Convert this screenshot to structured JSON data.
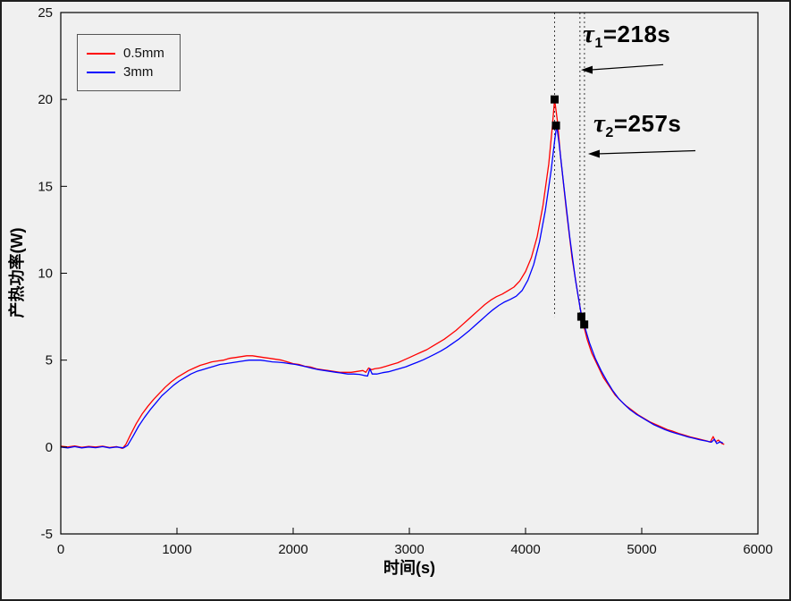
{
  "figure": {
    "background": "#f0f0f0",
    "border_color": "#1f1f1f"
  },
  "chart_data": {
    "type": "line",
    "title": "",
    "xlabel": "时间(s)",
    "ylabel": "产热功率(W)",
    "xlim": [
      0,
      6000
    ],
    "ylim": [
      -5,
      25
    ],
    "xticks": [
      0,
      1000,
      2000,
      3000,
      4000,
      5000,
      6000
    ],
    "yticks": [
      -5,
      0,
      5,
      10,
      15,
      20,
      25
    ],
    "grid": false,
    "legend_position": "top-left",
    "colors": {
      "plot_bg": "#f0f0f0",
      "axis": "#000000",
      "vline": "#3a3a3a",
      "marker": "#000000",
      "arrow": "#000000"
    },
    "series": [
      {
        "name": "0.5mm",
        "color": "#ff0000",
        "points": [
          [
            0,
            0.05
          ],
          [
            60,
            0
          ],
          [
            120,
            0.06
          ],
          [
            180,
            -0.02
          ],
          [
            240,
            0.04
          ],
          [
            300,
            0
          ],
          [
            360,
            0.05
          ],
          [
            420,
            -0.03
          ],
          [
            480,
            0.02
          ],
          [
            530,
            -0.08
          ],
          [
            560,
            0.15
          ],
          [
            600,
            0.7
          ],
          [
            650,
            1.35
          ],
          [
            700,
            1.9
          ],
          [
            750,
            2.35
          ],
          [
            800,
            2.75
          ],
          [
            850,
            3.1
          ],
          [
            900,
            3.45
          ],
          [
            950,
            3.75
          ],
          [
            1000,
            4.0
          ],
          [
            1050,
            4.2
          ],
          [
            1100,
            4.4
          ],
          [
            1150,
            4.55
          ],
          [
            1200,
            4.7
          ],
          [
            1250,
            4.8
          ],
          [
            1300,
            4.9
          ],
          [
            1350,
            4.95
          ],
          [
            1400,
            5.0
          ],
          [
            1450,
            5.1
          ],
          [
            1500,
            5.15
          ],
          [
            1550,
            5.2
          ],
          [
            1600,
            5.25
          ],
          [
            1650,
            5.25
          ],
          [
            1700,
            5.2
          ],
          [
            1750,
            5.15
          ],
          [
            1800,
            5.1
          ],
          [
            1850,
            5.05
          ],
          [
            1900,
            5.0
          ],
          [
            1950,
            4.9
          ],
          [
            2000,
            4.8
          ],
          [
            2050,
            4.75
          ],
          [
            2100,
            4.65
          ],
          [
            2150,
            4.6
          ],
          [
            2200,
            4.5
          ],
          [
            2250,
            4.45
          ],
          [
            2300,
            4.4
          ],
          [
            2350,
            4.35
          ],
          [
            2400,
            4.3
          ],
          [
            2450,
            4.3
          ],
          [
            2500,
            4.3
          ],
          [
            2550,
            4.35
          ],
          [
            2600,
            4.4
          ],
          [
            2625,
            4.3
          ],
          [
            2650,
            4.55
          ],
          [
            2675,
            4.45
          ],
          [
            2700,
            4.5
          ],
          [
            2750,
            4.55
          ],
          [
            2800,
            4.65
          ],
          [
            2850,
            4.75
          ],
          [
            2900,
            4.85
          ],
          [
            2950,
            5.0
          ],
          [
            3000,
            5.15
          ],
          [
            3050,
            5.3
          ],
          [
            3100,
            5.45
          ],
          [
            3150,
            5.6
          ],
          [
            3200,
            5.8
          ],
          [
            3250,
            6.0
          ],
          [
            3300,
            6.2
          ],
          [
            3350,
            6.45
          ],
          [
            3400,
            6.7
          ],
          [
            3450,
            7.0
          ],
          [
            3500,
            7.3
          ],
          [
            3550,
            7.6
          ],
          [
            3600,
            7.9
          ],
          [
            3650,
            8.2
          ],
          [
            3700,
            8.45
          ],
          [
            3750,
            8.65
          ],
          [
            3800,
            8.8
          ],
          [
            3850,
            9.0
          ],
          [
            3900,
            9.2
          ],
          [
            3950,
            9.55
          ],
          [
            4000,
            10.1
          ],
          [
            4050,
            10.9
          ],
          [
            4100,
            12.1
          ],
          [
            4150,
            13.9
          ],
          [
            4200,
            16.3
          ],
          [
            4230,
            18.4
          ],
          [
            4250,
            20.0
          ],
          [
            4275,
            18.7
          ],
          [
            4300,
            16.8
          ],
          [
            4350,
            13.7
          ],
          [
            4400,
            10.9
          ],
          [
            4450,
            8.8
          ],
          [
            4470,
            8.0
          ],
          [
            4500,
            7.0
          ],
          [
            4530,
            6.2
          ],
          [
            4570,
            5.4
          ],
          [
            4620,
            4.7
          ],
          [
            4670,
            4.0
          ],
          [
            4720,
            3.5
          ],
          [
            4770,
            3.0
          ],
          [
            4820,
            2.65
          ],
          [
            4870,
            2.35
          ],
          [
            4920,
            2.1
          ],
          [
            4970,
            1.85
          ],
          [
            5020,
            1.65
          ],
          [
            5070,
            1.45
          ],
          [
            5120,
            1.3
          ],
          [
            5170,
            1.15
          ],
          [
            5220,
            1.0
          ],
          [
            5270,
            0.9
          ],
          [
            5320,
            0.78
          ],
          [
            5370,
            0.68
          ],
          [
            5420,
            0.58
          ],
          [
            5470,
            0.5
          ],
          [
            5520,
            0.42
          ],
          [
            5560,
            0.35
          ],
          [
            5590,
            0.28
          ],
          [
            5615,
            0.6
          ],
          [
            5635,
            0.3
          ],
          [
            5660,
            0.4
          ],
          [
            5690,
            0.2
          ],
          [
            5710,
            0.15
          ]
        ]
      },
      {
        "name": "3mm",
        "color": "#0000ff",
        "points": [
          [
            0,
            0
          ],
          [
            60,
            -0.05
          ],
          [
            120,
            0.02
          ],
          [
            180,
            -0.05
          ],
          [
            240,
            0
          ],
          [
            300,
            -0.04
          ],
          [
            360,
            0.02
          ],
          [
            420,
            -0.05
          ],
          [
            480,
            0
          ],
          [
            540,
            -0.05
          ],
          [
            575,
            0.1
          ],
          [
            620,
            0.6
          ],
          [
            670,
            1.2
          ],
          [
            720,
            1.7
          ],
          [
            770,
            2.15
          ],
          [
            820,
            2.55
          ],
          [
            870,
            2.95
          ],
          [
            920,
            3.25
          ],
          [
            970,
            3.55
          ],
          [
            1020,
            3.8
          ],
          [
            1070,
            4.0
          ],
          [
            1120,
            4.2
          ],
          [
            1170,
            4.35
          ],
          [
            1220,
            4.45
          ],
          [
            1270,
            4.55
          ],
          [
            1320,
            4.65
          ],
          [
            1370,
            4.75
          ],
          [
            1420,
            4.8
          ],
          [
            1470,
            4.85
          ],
          [
            1520,
            4.9
          ],
          [
            1570,
            4.95
          ],
          [
            1620,
            5.0
          ],
          [
            1670,
            5.0
          ],
          [
            1720,
            5.0
          ],
          [
            1770,
            4.95
          ],
          [
            1820,
            4.9
          ],
          [
            1870,
            4.88
          ],
          [
            1920,
            4.85
          ],
          [
            1970,
            4.8
          ],
          [
            2020,
            4.75
          ],
          [
            2070,
            4.68
          ],
          [
            2120,
            4.6
          ],
          [
            2170,
            4.52
          ],
          [
            2220,
            4.45
          ],
          [
            2270,
            4.4
          ],
          [
            2320,
            4.35
          ],
          [
            2370,
            4.3
          ],
          [
            2420,
            4.25
          ],
          [
            2470,
            4.2
          ],
          [
            2520,
            4.2
          ],
          [
            2570,
            4.18
          ],
          [
            2610,
            4.12
          ],
          [
            2640,
            4.08
          ],
          [
            2660,
            4.5
          ],
          [
            2680,
            4.2
          ],
          [
            2720,
            4.2
          ],
          [
            2770,
            4.28
          ],
          [
            2820,
            4.33
          ],
          [
            2870,
            4.42
          ],
          [
            2920,
            4.52
          ],
          [
            2970,
            4.62
          ],
          [
            3020,
            4.75
          ],
          [
            3070,
            4.88
          ],
          [
            3120,
            5.02
          ],
          [
            3170,
            5.18
          ],
          [
            3220,
            5.35
          ],
          [
            3270,
            5.52
          ],
          [
            3320,
            5.72
          ],
          [
            3370,
            5.95
          ],
          [
            3420,
            6.18
          ],
          [
            3470,
            6.45
          ],
          [
            3520,
            6.72
          ],
          [
            3570,
            7.02
          ],
          [
            3620,
            7.32
          ],
          [
            3670,
            7.62
          ],
          [
            3720,
            7.9
          ],
          [
            3770,
            8.15
          ],
          [
            3820,
            8.35
          ],
          [
            3870,
            8.5
          ],
          [
            3920,
            8.68
          ],
          [
            3970,
            9.0
          ],
          [
            4020,
            9.6
          ],
          [
            4070,
            10.5
          ],
          [
            4120,
            11.8
          ],
          [
            4170,
            13.6
          ],
          [
            4220,
            15.9
          ],
          [
            4250,
            17.6
          ],
          [
            4268,
            18.5
          ],
          [
            4290,
            17.4
          ],
          [
            4330,
            15.0
          ],
          [
            4380,
            12.1
          ],
          [
            4430,
            9.6
          ],
          [
            4480,
            7.6
          ],
          [
            4510,
            6.9
          ],
          [
            4550,
            6.0
          ],
          [
            4600,
            5.1
          ],
          [
            4650,
            4.4
          ],
          [
            4700,
            3.8
          ],
          [
            4750,
            3.25
          ],
          [
            4800,
            2.8
          ],
          [
            4850,
            2.45
          ],
          [
            4900,
            2.15
          ],
          [
            4950,
            1.9
          ],
          [
            5000,
            1.7
          ],
          [
            5050,
            1.5
          ],
          [
            5100,
            1.3
          ],
          [
            5150,
            1.15
          ],
          [
            5200,
            1.0
          ],
          [
            5250,
            0.88
          ],
          [
            5300,
            0.78
          ],
          [
            5350,
            0.68
          ],
          [
            5400,
            0.58
          ],
          [
            5450,
            0.5
          ],
          [
            5500,
            0.42
          ],
          [
            5550,
            0.35
          ],
          [
            5600,
            0.28
          ],
          [
            5625,
            0.45
          ],
          [
            5645,
            0.2
          ],
          [
            5675,
            0.3
          ],
          [
            5700,
            0.22
          ]
        ]
      }
    ],
    "markers": {
      "shape": "square",
      "color": "#000000",
      "size": 9,
      "points": [
        [
          4250,
          20.0
        ],
        [
          4262,
          18.5
        ],
        [
          4480,
          7.5
        ],
        [
          4505,
          7.05
        ]
      ]
    },
    "vlines": [
      {
        "x": 4250,
        "y1": 25,
        "y2": 7.5
      },
      {
        "x": 4468,
        "y1": 25,
        "y2": 7.4
      },
      {
        "x": 4507,
        "y1": 25,
        "y2": 7.4
      }
    ],
    "arrows": [
      {
        "head": [
          4477,
          21.7
        ],
        "tail": [
          5185,
          22.0
        ]
      },
      {
        "head": [
          4538,
          16.87
        ],
        "tail": [
          5462,
          17.05
        ]
      }
    ],
    "annotations": [
      {
        "symbol": "τ",
        "subscript": "1",
        "text": "=218s",
        "value_s": 218
      },
      {
        "symbol": "τ",
        "subscript": "2",
        "text": "=257s",
        "value_s": 257
      }
    ]
  }
}
